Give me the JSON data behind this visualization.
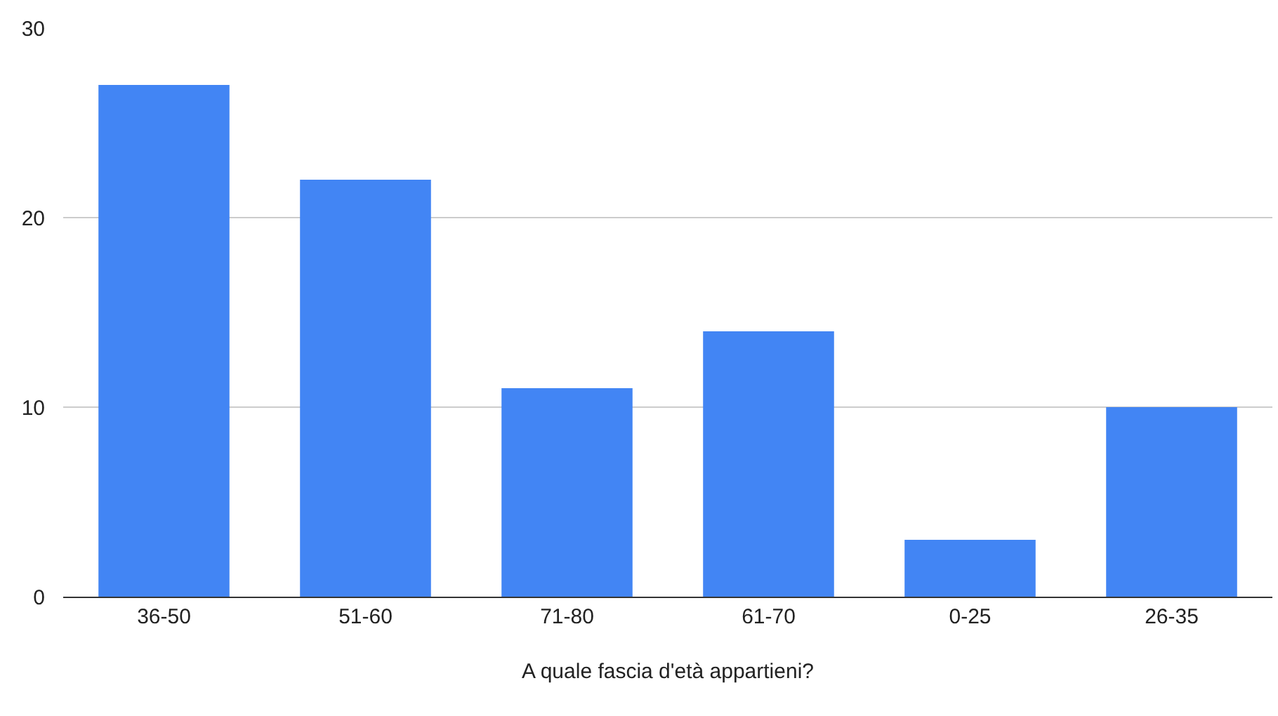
{
  "chart_data": {
    "type": "bar",
    "xlabel": "A quale fascia d'età appartieni?",
    "categories": [
      "36-50",
      "51-60",
      "71-80",
      "61-70",
      "0-25",
      "26-35"
    ],
    "values": [
      27,
      22,
      11,
      14,
      3,
      10
    ],
    "color": "#4285f4",
    "ylim": [
      0,
      30
    ],
    "yticks": [
      0,
      10,
      20,
      30
    ],
    "grid": "y"
  }
}
